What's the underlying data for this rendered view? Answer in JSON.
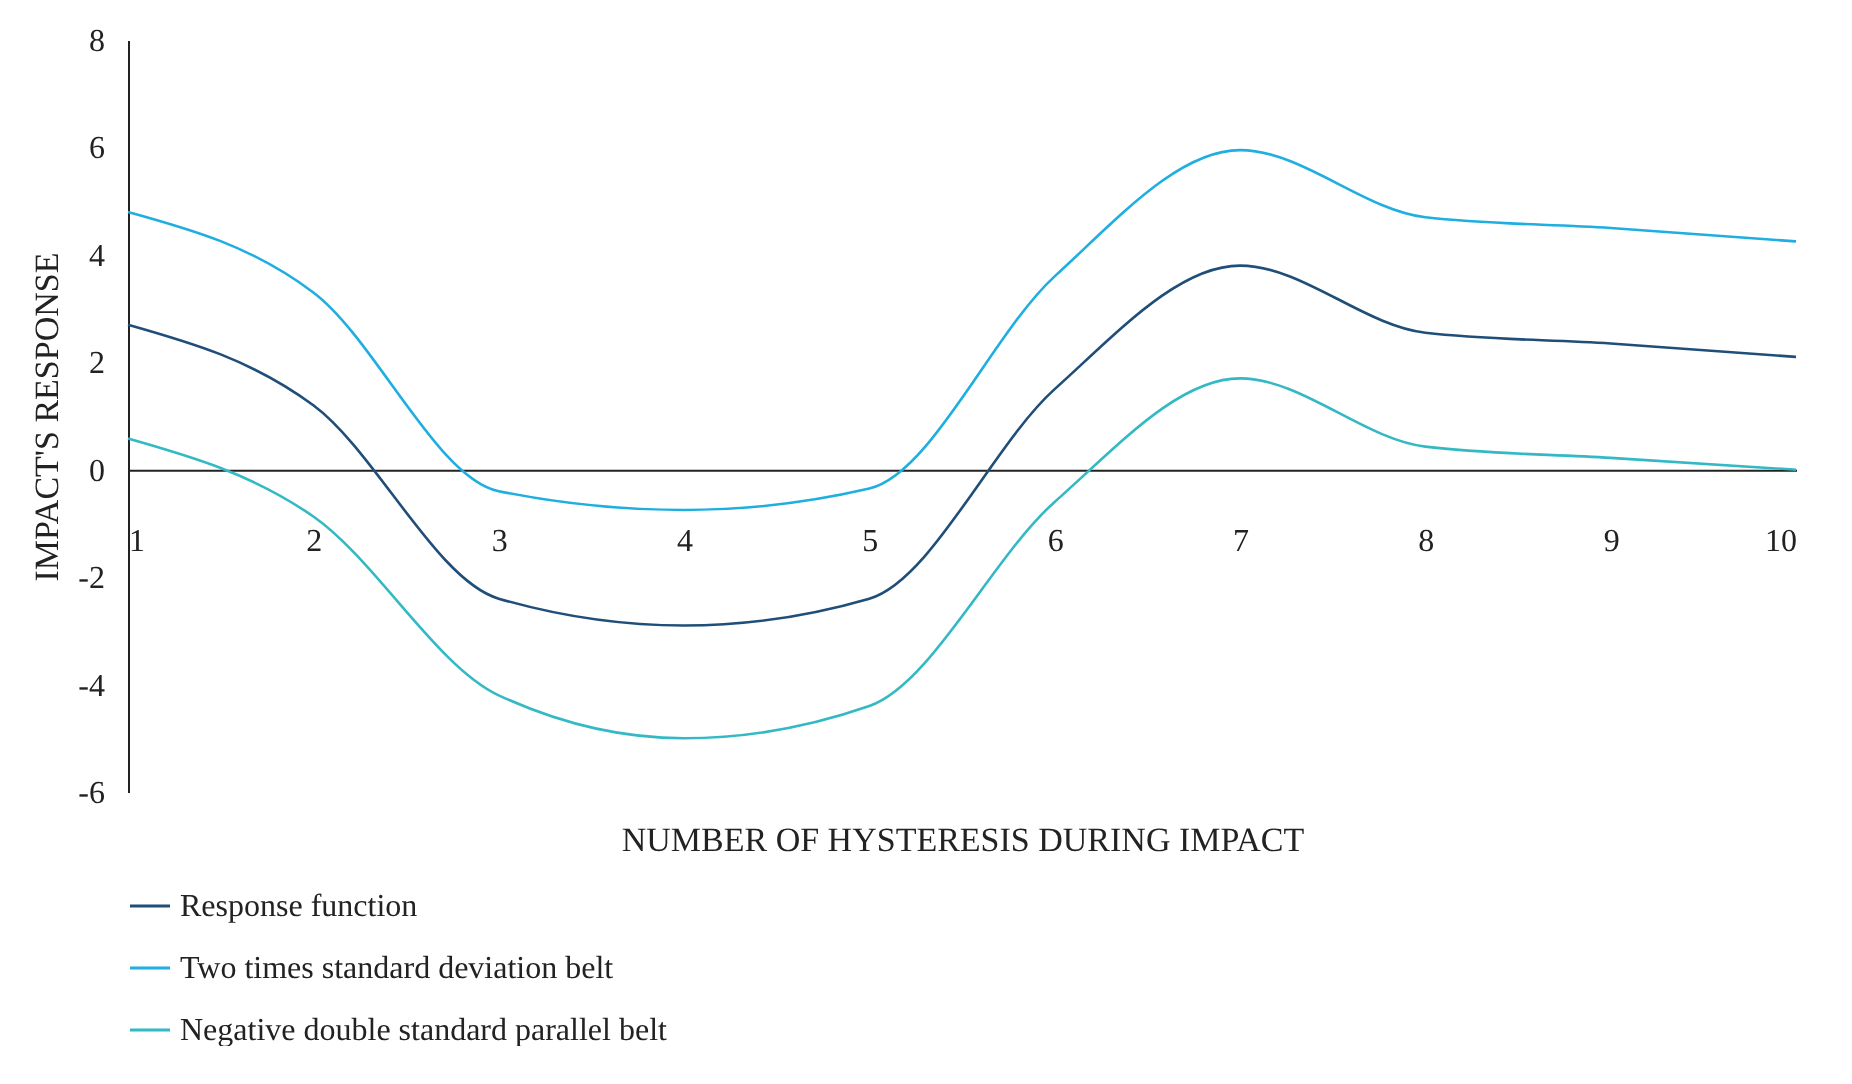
{
  "chart_data": {
    "type": "line",
    "xlabel": "NUMBER OF HYSTERESIS DURING IMPACT",
    "ylabel": "IMPACT'S RESPONSE",
    "x": [
      1,
      2,
      3,
      4,
      5,
      6,
      7,
      8,
      9,
      10
    ],
    "series": [
      {
        "name": "Response function",
        "color": "#1f4e79",
        "values": [
          2.7,
          1.2,
          -2.4,
          -2.9,
          -2.4,
          1.5,
          3.8,
          2.55,
          2.35,
          2.1
        ]
      },
      {
        "name": "Two times standard deviation belt",
        "color": "#1eaee0",
        "values": [
          4.8,
          3.3,
          -0.4,
          -0.75,
          -0.35,
          3.6,
          5.95,
          4.7,
          4.5,
          4.25
        ]
      },
      {
        "name": "Negative double standard parallel belt",
        "color": "#33b9c4",
        "values": [
          0.58,
          -0.87,
          -4.2,
          -5.0,
          -4.4,
          -0.6,
          1.7,
          0.43,
          0.22,
          0
        ]
      }
    ],
    "xlim": [
      1,
      10
    ],
    "xticks": [
      1,
      2,
      3,
      4,
      5,
      6,
      7,
      8,
      9,
      10
    ],
    "ylim": [
      -6,
      8
    ],
    "yticks": [
      -6,
      -4,
      -2,
      0,
      2,
      4,
      6,
      8
    ],
    "legend": "bottom left"
  }
}
